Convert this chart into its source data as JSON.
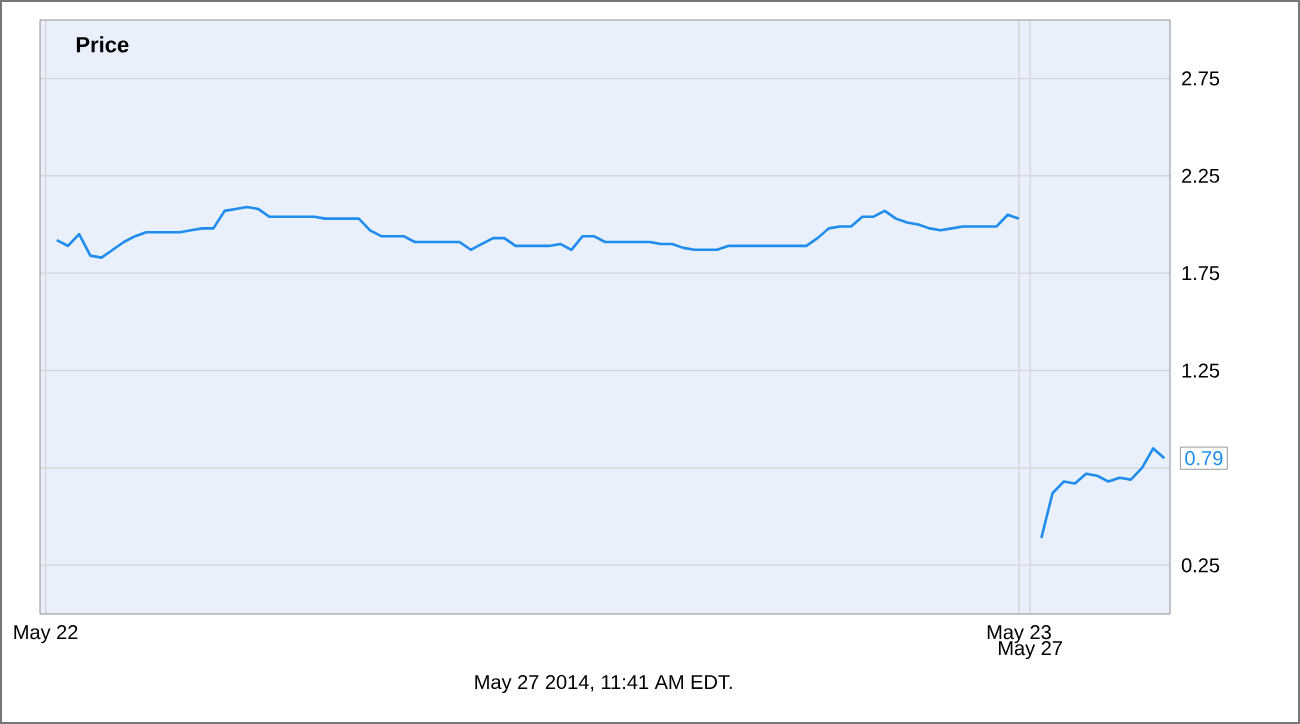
{
  "chart_data": {
    "type": "line",
    "title": "Price",
    "categories": [
      "May 22",
      null,
      null,
      null,
      null,
      null,
      null,
      null,
      null,
      null,
      null,
      null,
      null,
      null,
      null,
      null,
      null,
      null,
      null,
      null,
      null,
      null,
      null,
      null,
      null,
      null,
      null,
      null,
      null,
      null,
      null,
      null,
      null,
      null,
      null,
      null,
      null,
      null,
      null,
      null,
      null,
      null,
      null,
      null,
      null,
      null,
      null,
      null,
      null,
      null,
      null,
      null,
      null,
      null,
      null,
      null,
      null,
      null,
      null,
      null,
      null,
      null,
      null,
      null,
      null,
      null,
      null,
      null,
      null,
      null,
      null,
      null,
      null,
      null,
      null,
      null,
      null,
      null,
      null,
      null,
      null,
      null,
      null,
      null,
      null,
      null,
      null,
      "May 23",
      "May 27",
      null,
      null,
      null,
      null,
      null,
      null,
      null,
      null,
      null,
      null,
      null,
      null
    ],
    "series": [
      {
        "color": "#1f8ded",
        "values": [
          null,
          1.92,
          1.89,
          1.95,
          1.84,
          1.83,
          1.87,
          1.91,
          1.94,
          1.96,
          1.96,
          1.96,
          1.96,
          1.97,
          1.98,
          1.98,
          2.07,
          2.08,
          2.09,
          2.08,
          2.04,
          2.04,
          2.04,
          2.04,
          2.04,
          2.03,
          2.03,
          2.03,
          2.03,
          1.97,
          1.94,
          1.94,
          1.94,
          1.91,
          1.91,
          1.91,
          1.91,
          1.91,
          1.87,
          1.9,
          1.93,
          1.93,
          1.89,
          1.89,
          1.89,
          1.89,
          1.9,
          1.87,
          1.94,
          1.94,
          1.91,
          1.91,
          1.91,
          1.91,
          1.91,
          1.9,
          1.9,
          1.88,
          1.87,
          1.87,
          1.87,
          1.89,
          1.89,
          1.89,
          1.89,
          1.89,
          1.89,
          1.89,
          1.89,
          1.93,
          1.98,
          1.99,
          1.99,
          2.04,
          2.04,
          2.07,
          2.03,
          2.01,
          2.0,
          1.98,
          1.97,
          1.98,
          1.99,
          1.99,
          1.99,
          1.99,
          2.05,
          2.03,
          null,
          0.39,
          0.62,
          0.68,
          0.67,
          0.72,
          0.71,
          0.68,
          0.7,
          0.69,
          0.75,
          0.85,
          0.8
        ]
      }
    ],
    "ylim": [
      0,
      3.05
    ],
    "yticks": [
      0.25,
      {
        "value": 0.75,
        "label": null
      },
      1.25,
      1.75,
      2.25,
      2.75
    ],
    "grid": true,
    "annotations": [
      "0.79",
      "May 27 2014, 11:41 AM EDT."
    ]
  }
}
